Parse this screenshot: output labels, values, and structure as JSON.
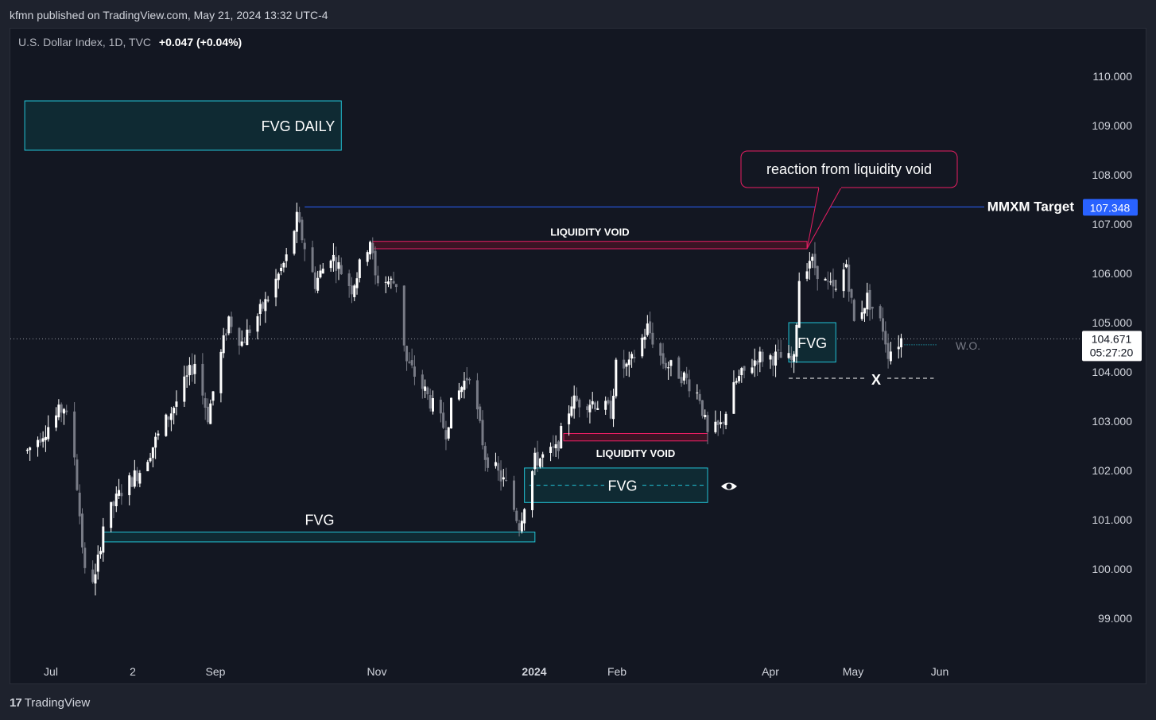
{
  "header": {
    "published": "kfmn published on TradingView.com, May 21, 2024 13:32 UTC-4"
  },
  "legend": {
    "symbol": "U.S. Dollar Index, 1D, TVC",
    "change": "+0.047 (+0.04%)"
  },
  "footer": {
    "logo_mark": "17",
    "brand": "TradingView"
  },
  "colors": {
    "background": "#131722",
    "up_candle": "#ffffff",
    "down_candle": "#787b86",
    "fvg_border": "#22c3d6",
    "fvg_fill": "#0f2a33",
    "void_border": "#e91e63",
    "void_fill": "#3a1424",
    "target_line": "#2962ff",
    "price_label_bg": "#2962ff"
  },
  "chart_data": {
    "type": "candlestick",
    "symbol": "U.S. Dollar Index",
    "interval": "1D",
    "y_ticks": [
      "99.000",
      "100.000",
      "101.000",
      "102.000",
      "103.000",
      "104.000",
      "105.000",
      "106.000",
      "107.000",
      "108.000",
      "109.000",
      "110.000"
    ],
    "y_range": [
      98.2,
      110.8
    ],
    "x_ticks": [
      {
        "label": "Jul",
        "bold": false
      },
      {
        "label": "2",
        "bold": false
      },
      {
        "label": "Sep",
        "bold": false
      },
      {
        "label": "Nov",
        "bold": false
      },
      {
        "label": "2024",
        "bold": true
      },
      {
        "label": "Feb",
        "bold": false
      },
      {
        "label": "Apr",
        "bold": false
      },
      {
        "label": "May",
        "bold": false
      },
      {
        "label": "Jun",
        "bold": false
      }
    ],
    "last_price": "104.671",
    "countdown": "05:27:20",
    "target_price": "107.348",
    "target_label": "MMXM Target",
    "price_path": [
      [
        "2023-06-22",
        102.4
      ],
      [
        "2023-06-30",
        102.9
      ],
      [
        "2023-07-06",
        103.3
      ],
      [
        "2023-07-10",
        102.3
      ],
      [
        "2023-07-14",
        99.9
      ],
      [
        "2023-07-18",
        99.8
      ],
      [
        "2023-07-21",
        100.9
      ],
      [
        "2023-07-28",
        101.6
      ],
      [
        "2023-08-04",
        102.0
      ],
      [
        "2023-08-10",
        102.6
      ],
      [
        "2023-08-18",
        103.4
      ],
      [
        "2023-08-25",
        104.2
      ],
      [
        "2023-08-30",
        103.1
      ],
      [
        "2023-09-07",
        105.1
      ],
      [
        "2023-09-12",
        104.6
      ],
      [
        "2023-09-21",
        105.4
      ],
      [
        "2023-09-29",
        106.3
      ],
      [
        "2023-10-03",
        107.1
      ],
      [
        "2023-10-10",
        105.8
      ],
      [
        "2023-10-16",
        106.4
      ],
      [
        "2023-10-24",
        105.7
      ],
      [
        "2023-10-31",
        106.7
      ],
      [
        "2023-11-02",
        105.9
      ],
      [
        "2023-11-10",
        105.8
      ],
      [
        "2023-11-14",
        104.2
      ],
      [
        "2023-11-21",
        103.6
      ],
      [
        "2023-11-29",
        102.8
      ],
      [
        "2023-12-01",
        103.3
      ],
      [
        "2023-12-08",
        104.0
      ],
      [
        "2023-12-14",
        102.3
      ],
      [
        "2023-12-22",
        101.7
      ],
      [
        "2023-12-27",
        100.9
      ],
      [
        "2024-01-02",
        102.2
      ],
      [
        "2024-01-10",
        102.4
      ],
      [
        "2024-01-16",
        103.4
      ],
      [
        "2024-01-24",
        103.4
      ],
      [
        "2024-01-31",
        103.2
      ],
      [
        "2024-02-02",
        104.1
      ],
      [
        "2024-02-07",
        104.1
      ],
      [
        "2024-02-14",
        104.9
      ],
      [
        "2024-02-20",
        104.2
      ],
      [
        "2024-02-28",
        103.9
      ],
      [
        "2024-03-05",
        103.5
      ],
      [
        "2024-03-08",
        102.7
      ],
      [
        "2024-03-13",
        102.9
      ],
      [
        "2024-03-19",
        103.8
      ],
      [
        "2024-03-27",
        104.3
      ],
      [
        "2024-04-04",
        104.3
      ],
      [
        "2024-04-10",
        104.2
      ],
      [
        "2024-04-12",
        105.9
      ],
      [
        "2024-04-16",
        106.3
      ],
      [
        "2024-04-22",
        105.8
      ],
      [
        "2024-04-26",
        105.6
      ],
      [
        "2024-04-30",
        106.2
      ],
      [
        "2024-05-03",
        105.0
      ],
      [
        "2024-05-08",
        105.5
      ],
      [
        "2024-05-14",
        104.9
      ],
      [
        "2024-05-16",
        104.4
      ],
      [
        "2024-05-21",
        104.671
      ]
    ],
    "date_domain": [
      "2023-06-21",
      "2024-06-09"
    ],
    "annotations": {
      "fvg_daily": {
        "label": "FVG DAILY",
        "from": "2023-06-21",
        "to": "2023-10-20",
        "top": 109.5,
        "bottom": 108.5
      },
      "fvg_bottom": {
        "label": "FVG",
        "from": "2023-07-21",
        "to": "2024-01-02",
        "top": 100.75,
        "bottom": 100.55
      },
      "fvg_mid": {
        "label": "FVG",
        "from": "2023-12-29",
        "to": "2024-03-08",
        "top": 102.05,
        "bottom": 101.35
      },
      "fvg_apr": {
        "label": "FVG",
        "from": "2024-04-08",
        "to": "2024-04-26",
        "top": 105.0,
        "bottom": 104.2
      },
      "void_top": {
        "label": "LIQUIDITY VOID",
        "from": "2023-11-01",
        "to": "2024-04-15",
        "top": 106.65,
        "bottom": 106.5
      },
      "void_bottom": {
        "label": "LIQUIDITY VOID",
        "from": "2024-01-13",
        "to": "2024-03-08",
        "top": 102.75,
        "bottom": 102.6
      },
      "callout": {
        "label": "reaction from liquidity void",
        "anchor_date": "2024-04-15",
        "anchor_price": 106.5
      },
      "x_marker": {
        "label": "X",
        "price": 103.87,
        "from": "2024-04-08",
        "to": "2024-05-31"
      },
      "wo": {
        "label": "W.O.",
        "price": 104.55,
        "from": "2024-05-21",
        "to": "2024-05-31"
      },
      "target_line": {
        "from": "2023-10-06",
        "price": 107.348
      }
    }
  }
}
